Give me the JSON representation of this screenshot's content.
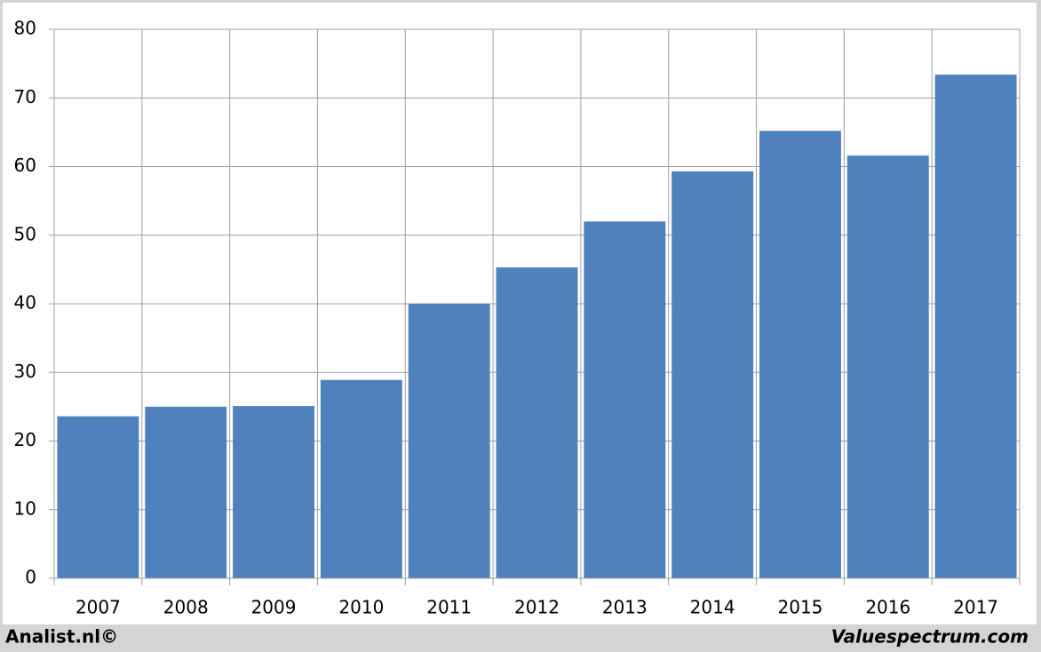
{
  "chart_data": {
    "type": "bar",
    "categories": [
      "2007",
      "2008",
      "2009",
      "2010",
      "2011",
      "2012",
      "2013",
      "2014",
      "2015",
      "2016",
      "2017"
    ],
    "values": [
      23.6,
      25.0,
      25.1,
      28.9,
      40.0,
      45.3,
      52.0,
      59.3,
      65.2,
      61.6,
      73.4
    ],
    "color": "#4f81bd",
    "ylim": [
      0,
      80
    ],
    "yticks": [
      0,
      10,
      20,
      30,
      40,
      50,
      60,
      70,
      80
    ],
    "grid": true
  },
  "footer": {
    "left": "Analist.nl©",
    "right": "Valuespectrum.com"
  }
}
